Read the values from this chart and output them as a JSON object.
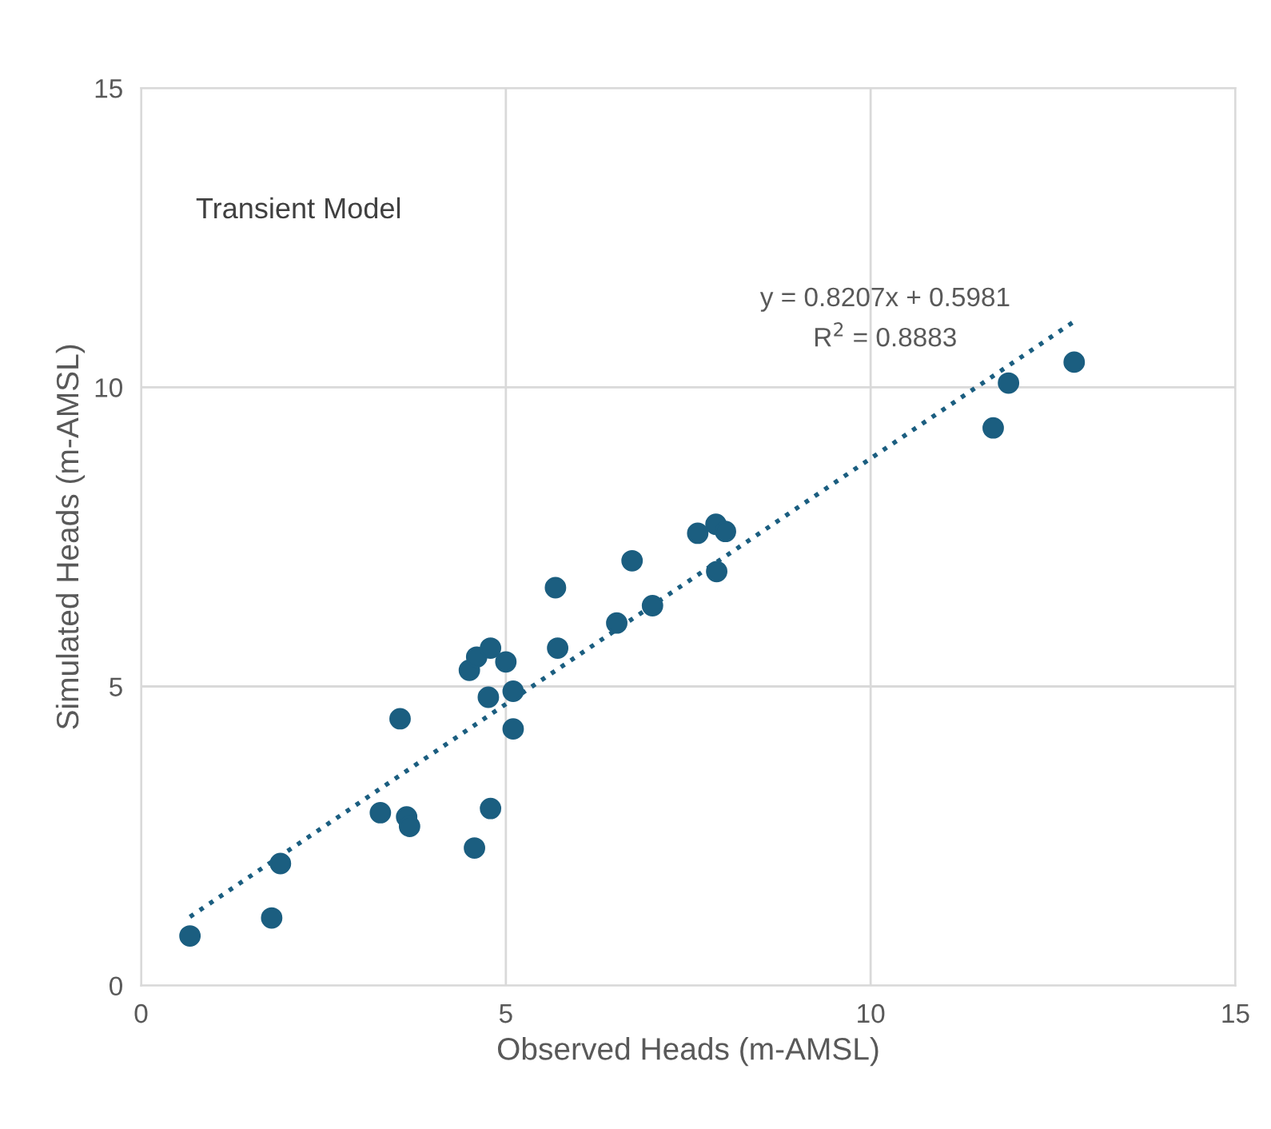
{
  "chart_data": {
    "type": "scatter",
    "xlabel": "Observed Heads (m-AMSL)",
    "ylabel": "Simulated Heads (m-AMSL)",
    "xlim": [
      0,
      15
    ],
    "ylim": [
      0,
      15
    ],
    "xticks": [
      0,
      5,
      10,
      15
    ],
    "yticks": [
      0,
      5,
      10,
      15
    ],
    "grid": true,
    "legend": false,
    "marker": "circle",
    "annotations": [
      "Transient Model",
      "y = 0.8207x + 0.5981",
      "R$^{2}$ = 0.8883"
    ],
    "series": [
      {
        "color": "#1b5e80",
        "x": [
          0.67,
          1.79,
          1.91,
          3.28,
          3.64,
          3.68,
          3.55,
          4.57,
          4.79,
          4.5,
          4.6,
          4.79,
          5.0,
          4.76,
          5.1,
          5.1,
          5.68,
          5.71,
          6.73,
          6.52,
          7.01,
          7.63,
          7.88,
          8.01,
          7.89,
          11.68,
          11.89,
          12.79
        ],
        "values": [
          0.83,
          1.13,
          2.04,
          2.89,
          2.82,
          2.66,
          4.46,
          2.3,
          2.96,
          5.27,
          5.49,
          5.64,
          5.41,
          4.82,
          4.92,
          4.29,
          6.65,
          5.64,
          7.1,
          6.06,
          6.35,
          7.56,
          7.71,
          7.59,
          6.92,
          9.32,
          10.07,
          10.42
        ]
      },
      {
        "type": "line",
        "color": "#1b5e80",
        "line_style": "dotted",
        "marker": "none",
        "x": [
          0.67,
          12.79
        ],
        "values": [
          1.15,
          11.1
        ]
      }
    ]
  }
}
